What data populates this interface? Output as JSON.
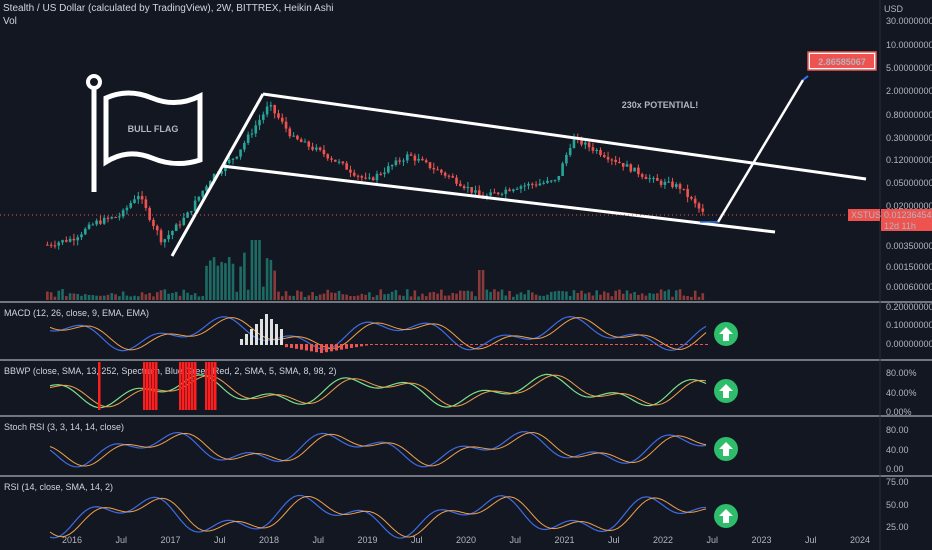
{
  "header": {
    "title": "Stealth / US Dollar (calculated by TradingView), 2W, BITTREX, Heikin Ashi",
    "volume_label": "Vol",
    "currency": "USD"
  },
  "annotations": {
    "flag_label": "BULL FLAG",
    "potential": "230x POTENTIAL!",
    "target_price": "2.86585067",
    "ticker": "XSTUSD",
    "last_price": "0.01236454",
    "countdown": "12d 11h"
  },
  "colors": {
    "background": "#131722",
    "up": "#26a69a",
    "down": "#ef5350",
    "target_badge": "#ef5350",
    "arrow_circle": "#2ebd6b"
  },
  "chart_data": [
    {
      "type": "candlestick",
      "title": "Stealth / US Dollar (calculated by TradingView), 2W, BITTREX, Heikin Ashi",
      "scale": "log",
      "y_ticks": [
        "30.00000000",
        "10.00000000",
        "5.00000000",
        "2.00000000",
        "0.80000000",
        "0.30000000",
        "0.12000000",
        "0.05000000",
        "0.02000000",
        "0.00900000",
        "0.00350000",
        "0.00150000",
        "0.00060000"
      ],
      "x_ticks": [
        "2016",
        "Jul",
        "2017",
        "Jul",
        "2018",
        "Jul",
        "2019",
        "Jul",
        "2020",
        "Jul",
        "2021",
        "Jul",
        "2022",
        "Jul",
        "2023",
        "Jul",
        "2024"
      ],
      "close_path": [
        {
          "date": "2015-10",
          "close": 0.0035
        },
        {
          "date": "2016-01",
          "close": 0.0045
        },
        {
          "date": "2016-04",
          "close": 0.009
        },
        {
          "date": "2016-07",
          "close": 0.012
        },
        {
          "date": "2016-09",
          "close": 0.03
        },
        {
          "date": "2016-12",
          "close": 0.004
        },
        {
          "date": "2017-03",
          "close": 0.012
        },
        {
          "date": "2017-06",
          "close": 0.06
        },
        {
          "date": "2017-09",
          "close": 0.15
        },
        {
          "date": "2018-01",
          "close": 1.2
        },
        {
          "date": "2018-04",
          "close": 0.3
        },
        {
          "date": "2018-08",
          "close": 0.15
        },
        {
          "date": "2019-01",
          "close": 0.05
        },
        {
          "date": "2019-06",
          "close": 0.15
        },
        {
          "date": "2019-12",
          "close": 0.05
        },
        {
          "date": "2020-03",
          "close": 0.025
        },
        {
          "date": "2020-07",
          "close": 0.04
        },
        {
          "date": "2020-12",
          "close": 0.05
        },
        {
          "date": "2021-02",
          "close": 0.3
        },
        {
          "date": "2021-06",
          "close": 0.15
        },
        {
          "date": "2021-12",
          "close": 0.05
        },
        {
          "date": "2022-03",
          "close": 0.04
        },
        {
          "date": "2022-06",
          "close": 0.01236454
        }
      ]
    },
    {
      "type": "line",
      "title": "MACD (12, 26, close, 9, EMA, EMA)",
      "y_ticks": [
        "0.20000000",
        "0.10000000",
        "0.00000000"
      ]
    },
    {
      "type": "line",
      "title": "BBWP (close, SMA, 13, 252, Spectrum, Blue Green Red, 2, SMA, 5, SMA, 8, 98, 2)",
      "y_ticks": [
        "80.00%",
        "40.00%",
        "0.00%"
      ]
    },
    {
      "type": "line",
      "title": "Stoch RSI (3, 3, 14, 14, close)",
      "y_ticks": [
        "80.00",
        "40.00",
        "0.00"
      ]
    },
    {
      "type": "line",
      "title": "RSI (14, close, SMA, 14, 2)",
      "y_ticks": [
        "75.00",
        "50.00",
        "25.00"
      ]
    }
  ]
}
